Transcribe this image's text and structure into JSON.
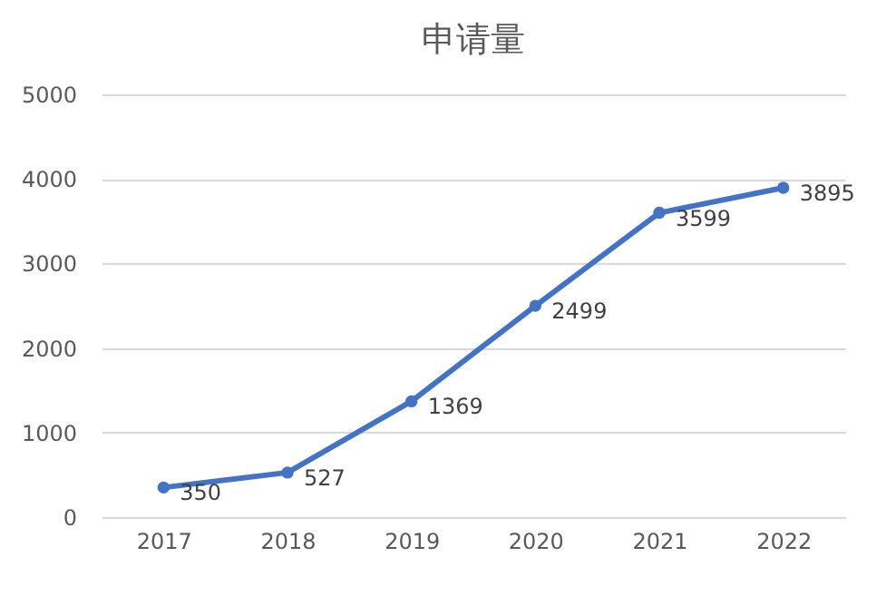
{
  "chart_data": {
    "type": "line",
    "title": "申请量",
    "categories": [
      "2017",
      "2018",
      "2019",
      "2020",
      "2021",
      "2022"
    ],
    "series": [
      {
        "color": "#4472c4",
        "values": [
          350,
          527,
          1369,
          2499,
          3599,
          3895
        ]
      }
    ],
    "ylim": [
      0,
      5000
    ],
    "yticks": [
      0,
      1000,
      2000,
      3000,
      4000,
      5000
    ],
    "grid": "y",
    "marker": "circle",
    "data_labels": true,
    "legend": false
  }
}
